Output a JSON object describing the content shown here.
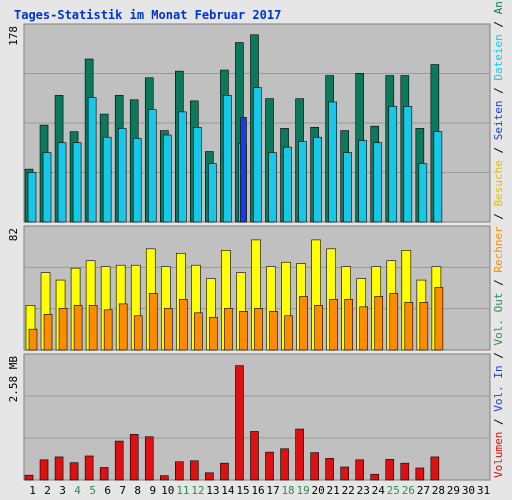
{
  "title": "Tages-Statistik im Monat Februar 2017",
  "colors": {
    "background": "#c0c0c0",
    "frame": "#e6e6e6",
    "title": "#0033cc",
    "anfragen": "#0b7a5c",
    "dateien": "#18c8e8",
    "seiten": "#1a3fd6",
    "besuche": "#ffff00",
    "rechner": "#ff8c00",
    "volumen": "#dd1111",
    "weekday": "#000000",
    "weekend": "#2e8b57"
  },
  "right_labels": {
    "top": [
      {
        "text": "Anfragen",
        "color": "#0b7a5c"
      },
      {
        "text": " / ",
        "color": "#000000"
      },
      {
        "text": "Dateien",
        "color": "#18c8e8"
      },
      {
        "text": " / ",
        "color": "#000000"
      },
      {
        "text": "Seiten",
        "color": "#1a3fd6"
      },
      {
        "text": " / ",
        "color": "#000000"
      },
      {
        "text": "Besuche",
        "color": "#e0c000"
      },
      {
        "text": " / ",
        "color": "#000000"
      },
      {
        "text": "Rechner",
        "color": "#ff8c00"
      },
      {
        "text": " / ",
        "color": "#000000"
      },
      {
        "text": "Vol. Out",
        "color": "#2e8b57"
      },
      {
        "text": " / ",
        "color": "#000000"
      },
      {
        "text": "Vol. In",
        "color": "#1a3fd6"
      },
      {
        "text": " / ",
        "color": "#000000"
      },
      {
        "text": "Volumen",
        "color": "#dd1111"
      }
    ]
  },
  "chart_data": {
    "type": "bar",
    "title": "Tages-Statistik im Monat Februar 2017",
    "categories": [
      "1",
      "2",
      "3",
      "4",
      "5",
      "6",
      "7",
      "8",
      "9",
      "10",
      "11",
      "12",
      "13",
      "14",
      "15",
      "16",
      "17",
      "18",
      "19",
      "20",
      "21",
      "22",
      "23",
      "24",
      "25",
      "26",
      "27",
      "28",
      "29",
      "30",
      "31"
    ],
    "weekend_days": [
      "4",
      "5",
      "11",
      "12",
      "18",
      "19",
      "25",
      "26"
    ],
    "panels": [
      {
        "name": "requests",
        "ymax_label": "178",
        "ylim": [
          0,
          178
        ],
        "series": [
          {
            "name": "Anfragen",
            "color": "#0b7a5c",
            "values": [
              48,
              88,
              115,
              82,
              148,
              98,
              115,
              111,
              131,
              83,
              137,
              110,
              64,
              138,
              163,
              170,
              112,
              85,
              112,
              86,
              133,
              83,
              135,
              87,
              133,
              133,
              85,
              143,
              0,
              0,
              0
            ]
          },
          {
            "name": "Dateien",
            "color": "#18c8e8",
            "values": [
              45,
              63,
              72,
              72,
              113,
              77,
              85,
              76,
              102,
              79,
              100,
              86,
              53,
              115,
              71,
              122,
              63,
              68,
              73,
              77,
              109,
              63,
              74,
              72,
              105,
              105,
              53,
              82,
              0,
              0,
              0
            ]
          },
          {
            "name": "Seiten",
            "color": "#1a3fd6",
            "values": [
              0,
              0,
              0,
              0,
              0,
              0,
              0,
              0,
              0,
              0,
              0,
              0,
              0,
              0,
              95,
              0,
              0,
              0,
              0,
              0,
              0,
              0,
              0,
              0,
              0,
              0,
              0,
              0,
              0,
              0,
              0
            ]
          }
        ]
      },
      {
        "name": "visits",
        "ymax_label": "82",
        "ylim": [
          0,
          82
        ],
        "series": [
          {
            "name": "Besuche",
            "color": "#ffff00",
            "values": [
              30,
              52,
              47,
              55,
              60,
              56,
              57,
              57,
              68,
              56,
              65,
              57,
              48,
              67,
              52,
              74,
              56,
              59,
              58,
              74,
              68,
              56,
              48,
              56,
              60,
              67,
              47,
              56,
              0,
              0,
              0
            ]
          },
          {
            "name": "Rechner",
            "color": "#ff8c00",
            "values": [
              14,
              24,
              28,
              30,
              30,
              27,
              31,
              23,
              38,
              28,
              34,
              25,
              22,
              28,
              26,
              28,
              26,
              23,
              36,
              30,
              34,
              34,
              29,
              36,
              38,
              32,
              32,
              42,
              0,
              0,
              0
            ]
          }
        ]
      },
      {
        "name": "volume",
        "ymax_label": "2.58 MB",
        "ylim": [
          0,
          2.58
        ],
        "series": [
          {
            "name": "Volumen",
            "color": "#dd1111",
            "values": [
              0.1,
              0.42,
              0.48,
              0.36,
              0.5,
              0.26,
              0.81,
              0.95,
              0.9,
              0.09,
              0.38,
              0.4,
              0.15,
              0.35,
              2.38,
              1.01,
              0.58,
              0.65,
              1.06,
              0.57,
              0.45,
              0.27,
              0.42,
              0.12,
              0.43,
              0.35,
              0.25,
              0.48,
              0,
              0,
              0
            ]
          }
        ]
      }
    ],
    "grid": true
  }
}
